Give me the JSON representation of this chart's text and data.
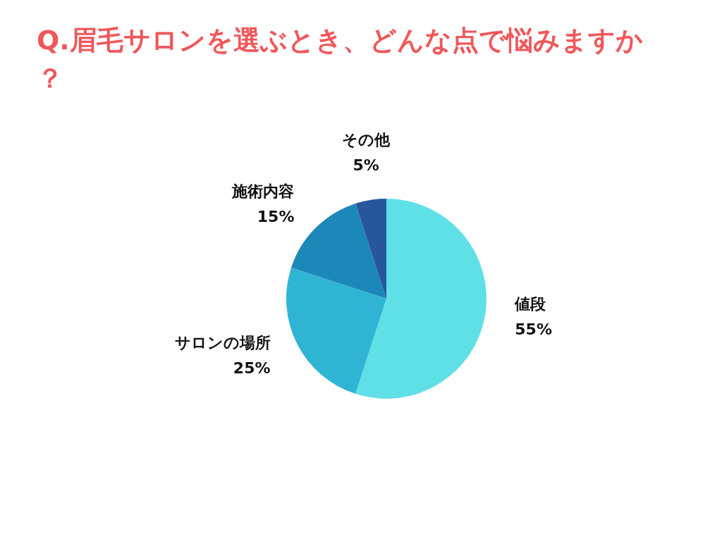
{
  "chart_data": {
    "type": "pie",
    "title": "Q.眉毛サロンを選ぶとき、どんな点で悩みますか？",
    "categories": [
      "値段",
      "サロンの場所",
      "施術内容",
      "その他"
    ],
    "values": [
      55,
      25,
      15,
      5
    ],
    "colors": [
      "#5ee0e6",
      "#2fb5d3",
      "#1c88ba",
      "#27579a"
    ],
    "value_labels": [
      "55%",
      "25%",
      "15%",
      "5%"
    ]
  }
}
